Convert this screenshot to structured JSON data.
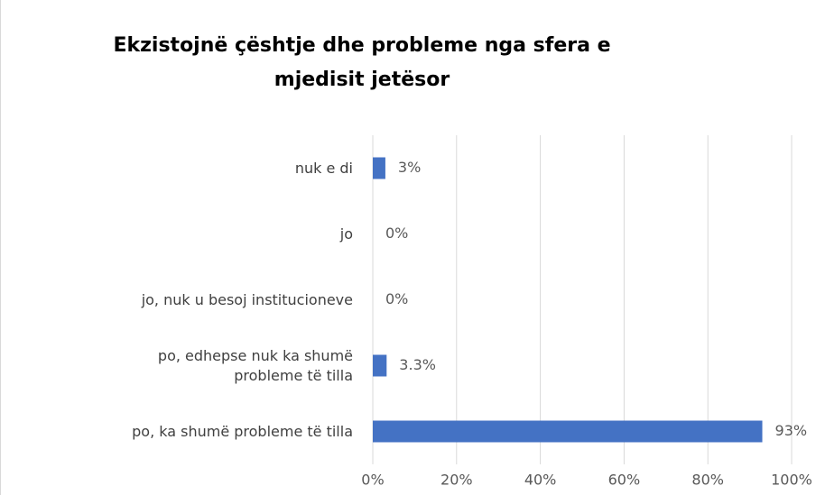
{
  "chart_data": {
    "type": "bar",
    "orientation": "horizontal",
    "title": "Ekzistojnë çështje dhe probleme nga sfera e mjedisit jetësor",
    "categories": [
      "nuk e di",
      "jo",
      "jo, nuk u besoj institucioneve",
      "po, edhepse nuk ka shumë probleme të tilla",
      "po, ka shumë probleme të tilla"
    ],
    "values": [
      3,
      0,
      0,
      3.3,
      93
    ],
    "value_labels": [
      "3%",
      "0%",
      "0%",
      "3.3%",
      "93%"
    ],
    "color": "#4472c4",
    "xlim": [
      0,
      100
    ],
    "xticks": [
      {
        "value": 0,
        "label": "0%"
      },
      {
        "value": 20,
        "label": "20%"
      },
      {
        "value": 40,
        "label": "40%"
      },
      {
        "value": 60,
        "label": "60%"
      },
      {
        "value": 80,
        "label": "80%"
      },
      {
        "value": 100,
        "label": "100%"
      }
    ],
    "grid": true
  }
}
